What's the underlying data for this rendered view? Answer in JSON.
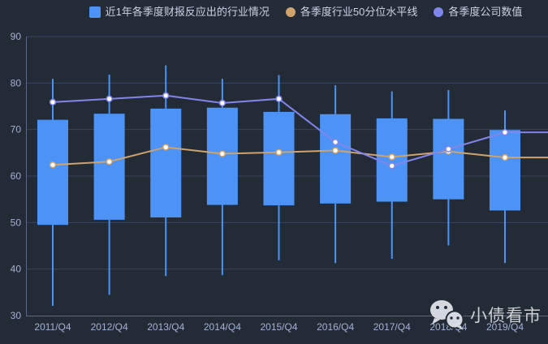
{
  "legend": {
    "items": [
      {
        "label": "近1年各季度财报反应出的行业情况",
        "shape": "square",
        "color": "#4C93F5"
      },
      {
        "label": "各季度行业50分位水平线",
        "shape": "circle",
        "color": "#CFA36B"
      },
      {
        "label": "各季度公司数值",
        "shape": "circle",
        "color": "#8085EC"
      }
    ]
  },
  "chart_data": {
    "type": "candlestick",
    "categories": [
      "2011/Q4",
      "2012/Q4",
      "2013/Q4",
      "2014/Q4",
      "2015/Q4",
      "2016/Q4",
      "2017/Q4",
      "2018/Q4",
      "2019/Q4"
    ],
    "series": [
      {
        "name": "近1年各季度财报反应出的行业情况",
        "type": "candlestick",
        "color": "#4C93F5",
        "boxes": [
          {
            "low": 32.1,
            "q1": 49.5,
            "q3": 72.1,
            "high": 80.9
          },
          {
            "low": 34.5,
            "q1": 50.6,
            "q3": 73.4,
            "high": 81.8
          },
          {
            "low": 38.5,
            "q1": 51.1,
            "q3": 74.5,
            "high": 83.8
          },
          {
            "low": 38.7,
            "q1": 53.8,
            "q3": 74.7,
            "high": 80.9
          },
          {
            "low": 41.9,
            "q1": 53.7,
            "q3": 73.8,
            "high": 81.7
          },
          {
            "low": 41.3,
            "q1": 54.1,
            "q3": 73.3,
            "high": 79.5
          },
          {
            "low": 42.2,
            "q1": 54.5,
            "q3": 72.4,
            "high": 78.2
          },
          {
            "low": 45.1,
            "q1": 55.0,
            "q3": 72.3,
            "high": 78.5
          },
          {
            "low": 41.3,
            "q1": 52.6,
            "q3": 69.9,
            "high": 74.1
          }
        ]
      },
      {
        "name": "各季度行业50分位水平线",
        "type": "line",
        "color": "#CFA36B",
        "values": [
          62.4,
          63.1,
          66.2,
          64.8,
          65.1,
          65.5,
          64.1,
          65.3,
          64.0
        ]
      },
      {
        "name": "各季度公司数值",
        "type": "line",
        "color": "#8085EC",
        "values": [
          75.9,
          76.6,
          77.3,
          75.7,
          76.6,
          67.3,
          62.2,
          65.8,
          69.4
        ]
      }
    ],
    "title": "",
    "xlabel": "",
    "ylabel": "",
    "ylim": [
      30,
      90
    ],
    "yticks": [
      30,
      40,
      50,
      60,
      70,
      80,
      90
    ],
    "grid": true,
    "legend_position": "top",
    "lines_extend_to_right_edge": true
  },
  "watermark": {
    "text": "小债看市",
    "icon": "wechat-chat-bubbles"
  },
  "colors": {
    "background": "#232b37",
    "candle": "#4C93F5",
    "percentile_line": "#CFA36B",
    "company_line": "#8085EC",
    "gridline": "#3A4660",
    "axis_line": "#5C6884",
    "axis_label": "#A4B3D2",
    "legend_text": "#CBD3E3",
    "watermark": "#D6D9DE"
  }
}
